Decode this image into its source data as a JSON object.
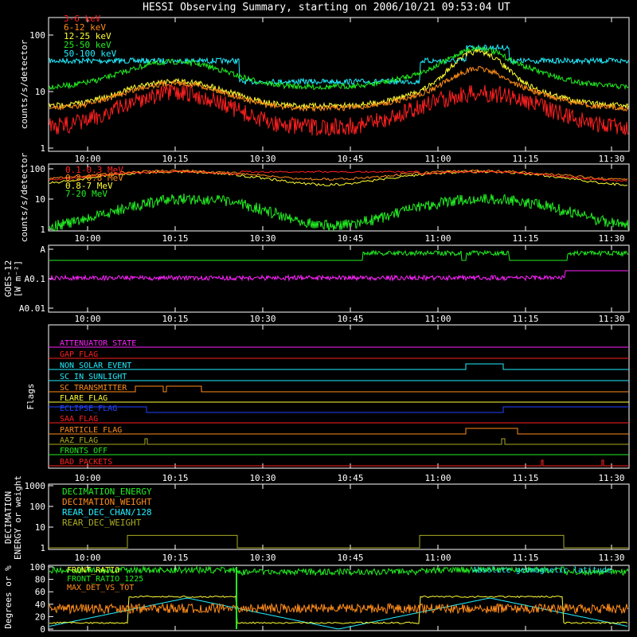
{
  "title": "HESSI Observing Summary, starting on 2006/10/21 09:53:04 UT",
  "time_ticks": [
    "10:00",
    "10:15",
    "10:30",
    "10:45",
    "11:00",
    "11:15",
    "11:30"
  ],
  "chart_data": [
    {
      "type": "line",
      "id": "rates-lo",
      "ylabel": "counts/s/detector",
      "yscale": "log",
      "ylim": [
        1,
        100
      ],
      "yticks": [
        "1",
        "10",
        "100"
      ],
      "series": [
        {
          "name": "3-6 keV",
          "color": "#ff2020"
        },
        {
          "name": "6-12 keV",
          "color": "#ff8c1a"
        },
        {
          "name": "12-25 keV",
          "color": "#ffff33"
        },
        {
          "name": "25-50 keV",
          "color": "#22ee22"
        },
        {
          "name": "50-100 keV",
          "color": "#22eeff"
        }
      ]
    },
    {
      "type": "line",
      "id": "rates-hi",
      "ylabel": "counts/s/detector",
      "yscale": "log",
      "ylim": [
        1,
        100
      ],
      "yticks": [
        "1",
        "10",
        "100"
      ],
      "series": [
        {
          "name": "0.1-0.3 MeV",
          "color": "#ff2020"
        },
        {
          "name": "0.3-0.8 MeV",
          "color": "#ff8c1a"
        },
        {
          "name": "0.8-7 MeV",
          "color": "#ffff33"
        },
        {
          "name": "7-20 MeV",
          "color": "#22ee22"
        }
      ]
    },
    {
      "type": "line",
      "id": "goes",
      "ylabel": "GOES-12",
      "yunit": "[W m⁻²]",
      "yticks": [
        "A",
        "A0.1",
        "A0.01"
      ],
      "series": [
        {
          "name": "",
          "color": "#22ee22"
        },
        {
          "name": "",
          "color": "#ff22ff"
        }
      ]
    },
    {
      "type": "line",
      "id": "flags",
      "ylabel": "Flags",
      "series": [
        {
          "name": "ATTENUATOR_STATE",
          "color": "#ff22ff"
        },
        {
          "name": "GAP_FLAG",
          "color": "#ff2020"
        },
        {
          "name": "NON_SOLAR_EVENT",
          "color": "#22eeff"
        },
        {
          "name": "SC_IN_SUNLIGHT",
          "color": "#22eeff"
        },
        {
          "name": "SC_TRANSMITTER",
          "color": "#ff8c1a"
        },
        {
          "name": "FLARE_FLAG",
          "color": "#ffff33"
        },
        {
          "name": "ECLIPSE_FLAG",
          "color": "#2244ff"
        },
        {
          "name": "SAA_FLAG",
          "color": "#ff2020"
        },
        {
          "name": "PARTICLE_FLAG",
          "color": "#ff8c1a"
        },
        {
          "name": "AAZ_FLAG",
          "color": "#aaaa22"
        },
        {
          "name": "FRONTS_OFF",
          "color": "#22ee22"
        },
        {
          "name": "BAD_PACKETS",
          "color": "#ff2020"
        }
      ]
    },
    {
      "type": "line",
      "id": "decimation",
      "ylabel": "DECIMATION",
      "ylabel2": "ENERGY or weight",
      "yscale": "log",
      "yticks": [
        "1",
        "10",
        "100",
        "1000"
      ],
      "series": [
        {
          "name": "DECIMATION_ENERGY",
          "color": "#22ee22"
        },
        {
          "name": "DECIMATION_WEIGHT",
          "color": "#ff8c1a"
        },
        {
          "name": "REAR_DEC_CHAN/128",
          "color": "#22eeff"
        },
        {
          "name": "REAR_DEC_WEIGHT",
          "color": "#aaaa22"
        }
      ]
    },
    {
      "type": "line",
      "id": "geo",
      "ylabel": "Degrees or %",
      "ylim": [
        0,
        100
      ],
      "yticks": [
        "0",
        "20",
        "40",
        "60",
        "80",
        "100"
      ],
      "annotation": "Absolute geomagnetic latitude",
      "series": [
        {
          "name": "FRONT_RATIO",
          "color": "#ffff33"
        },
        {
          "name": "FRONT_RATIO_1225",
          "color": "#22ee22"
        },
        {
          "name": "MAX_DET_VS_TOT",
          "color": "#ff8c1a"
        }
      ]
    }
  ]
}
